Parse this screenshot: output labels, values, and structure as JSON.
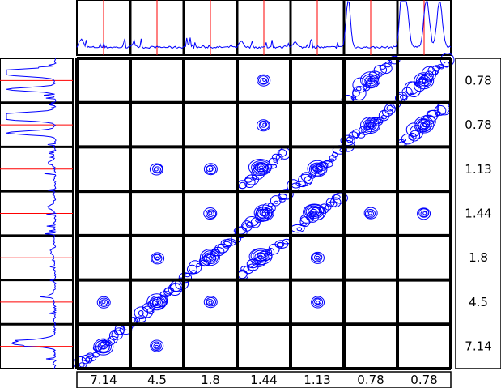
{
  "chart_data": {
    "type": "heatmap",
    "subtype": "2D NMR COSY contour panel grid",
    "title": "",
    "xlabel": "",
    "ylabel": "",
    "x_tick_labels": [
      "7.14",
      "4.5",
      "1.8",
      "1.44",
      "1.13",
      "0.78",
      "0.78"
    ],
    "y_tick_labels": [
      "0.78",
      "0.78",
      "1.13",
      "1.44",
      "1.8",
      "4.5",
      "7.14"
    ],
    "x_shifts_ppm": [
      7.14,
      4.5,
      1.8,
      1.44,
      1.13,
      0.78,
      0.78
    ],
    "y_shifts_ppm": [
      0.78,
      0.78,
      1.13,
      1.44,
      1.8,
      4.5,
      7.14
    ],
    "grid": "7x7 panels",
    "contour_color": "#0000ff",
    "marker_line_color": "#ff0000",
    "frame_color": "#000000",
    "contour_presence": [
      [
        0,
        0,
        0,
        1,
        0,
        3,
        3
      ],
      [
        0,
        0,
        0,
        1,
        0,
        3,
        3
      ],
      [
        0,
        1,
        1,
        2,
        3,
        0,
        0
      ],
      [
        0,
        0,
        1,
        3,
        2,
        1,
        1
      ],
      [
        0,
        1,
        3,
        2,
        1,
        0,
        0
      ],
      [
        1,
        3,
        1,
        0,
        1,
        0,
        0
      ],
      [
        3,
        1,
        0,
        0,
        0,
        0,
        0
      ]
    ],
    "top_projection_peaks": [
      0.15,
      0.05,
      0.05,
      0.12,
      0.1,
      0.95,
      0.95
    ],
    "left_projection_peaks": [
      0.95,
      0.95,
      0.1,
      0.12,
      0.08,
      0.1,
      0.3
    ]
  }
}
